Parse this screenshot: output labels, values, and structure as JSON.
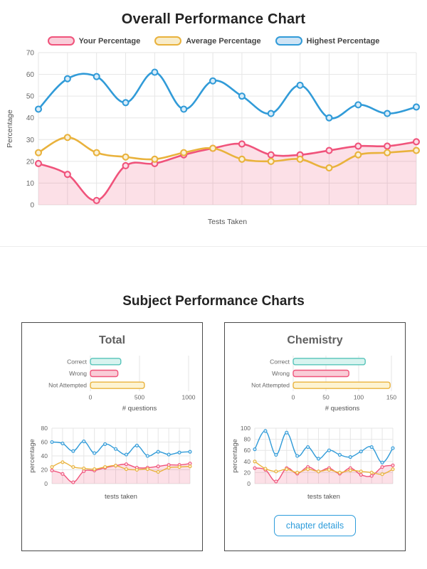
{
  "page": {
    "title": "Overall Performance Chart",
    "section_title": "Subject Performance Charts"
  },
  "cards": [
    {
      "title": "Total"
    },
    {
      "title": "Chemistry",
      "button_label": "chapter details"
    }
  ],
  "chart_data": [
    {
      "id": "overall",
      "type": "line",
      "title": "Overall Performance Chart",
      "xlabel": "Tests Taken",
      "ylabel": "Percentage",
      "ylim": [
        0,
        70
      ],
      "yticks": [
        0,
        10,
        20,
        30,
        40,
        50,
        60,
        70
      ],
      "grid": true,
      "legend_position": "top",
      "series": [
        {
          "name": "Your Percentage",
          "color": "#f0537b",
          "area_fill": "rgba(240,83,123,0.18)",
          "point_fill": "#fbdde6",
          "swatch_fill": "#f9cdd9",
          "values": [
            19,
            14,
            2,
            18,
            19,
            23,
            26,
            28,
            23,
            23,
            25,
            27,
            27,
            29
          ]
        },
        {
          "name": "Average Percentage",
          "color": "#e9b23c",
          "point_fill": "#faf0d6",
          "swatch_fill": "#f8ecca",
          "values": [
            24,
            31,
            24,
            22,
            21,
            24,
            26,
            21,
            20,
            21,
            17,
            23,
            24,
            25
          ]
        },
        {
          "name": "Highest Percentage",
          "color": "#319bd8",
          "point_fill": "#d8ecf9",
          "swatch_fill": "#cfe4f5",
          "values": [
            44,
            58,
            59,
            47,
            61,
            44,
            57,
            50,
            42,
            55,
            40,
            46,
            42,
            45
          ]
        }
      ]
    },
    {
      "id": "total_bars",
      "type": "bar",
      "orientation": "horizontal",
      "categories": [
        "Correct",
        "Wrong",
        "Not Attempted"
      ],
      "values": [
        310,
        280,
        550
      ],
      "xlabel": "# questions",
      "xlim": [
        0,
        1000
      ],
      "xticks": [
        0,
        500,
        1000
      ],
      "bar_colors": [
        {
          "fill": "#d8f3ef",
          "border": "#56c4ba"
        },
        {
          "fill": "#f9ccd7",
          "border": "#f0537b"
        },
        {
          "fill": "#fdf3d2",
          "border": "#e9b23c"
        }
      ]
    },
    {
      "id": "total_lines",
      "type": "line",
      "xlabel": "tests taken",
      "ylabel": "percentage",
      "ylim": [
        0,
        80
      ],
      "yticks": [
        0,
        20,
        40,
        60,
        80
      ],
      "grid": true,
      "series": [
        {
          "name": "Your Percentage",
          "color": "#f0537b",
          "area_fill": "rgba(240,83,123,0.18)",
          "point_fill": "#fbdde6",
          "values": [
            19,
            14,
            2,
            18,
            19,
            23,
            26,
            28,
            23,
            23,
            25,
            27,
            27,
            29
          ]
        },
        {
          "name": "Average Percentage",
          "color": "#e9b23c",
          "point_fill": "#faf0d6",
          "values": [
            24,
            31,
            24,
            22,
            21,
            24,
            26,
            21,
            20,
            21,
            17,
            23,
            24,
            25
          ]
        },
        {
          "name": "Highest Percentage",
          "color": "#319bd8",
          "point_fill": "#d8ecf9",
          "values": [
            60,
            58,
            47,
            61,
            44,
            57,
            50,
            42,
            55,
            40,
            46,
            42,
            45,
            46
          ]
        }
      ]
    },
    {
      "id": "chem_bars",
      "type": "bar",
      "orientation": "horizontal",
      "categories": [
        "Correct",
        "Wrong",
        "Not Attempted"
      ],
      "values": [
        110,
        85,
        148
      ],
      "xlabel": "# questions",
      "xlim": [
        0,
        150
      ],
      "xticks": [
        0,
        50,
        100,
        150
      ],
      "bar_colors": [
        {
          "fill": "#d8f3ef",
          "border": "#56c4ba"
        },
        {
          "fill": "#f9ccd7",
          "border": "#f0537b"
        },
        {
          "fill": "#fdf3d2",
          "border": "#e9b23c"
        }
      ]
    },
    {
      "id": "chem_lines",
      "type": "line",
      "xlabel": "tests taken",
      "ylabel": "percentage",
      "ylim": [
        0,
        100
      ],
      "yticks": [
        0,
        20,
        40,
        60,
        80,
        100
      ],
      "grid": true,
      "series": [
        {
          "name": "Your Percentage",
          "color": "#f0537b",
          "area_fill": "rgba(240,83,123,0.18)",
          "point_fill": "#fbdde6",
          "values": [
            28,
            25,
            4,
            28,
            18,
            30,
            22,
            28,
            18,
            28,
            16,
            14,
            30,
            33
          ]
        },
        {
          "name": "Average Percentage",
          "color": "#e9b23c",
          "point_fill": "#faf0d6",
          "values": [
            40,
            27,
            22,
            26,
            20,
            26,
            22,
            25,
            20,
            24,
            22,
            20,
            17,
            26
          ]
        },
        {
          "name": "Highest Percentage",
          "color": "#319bd8",
          "point_fill": "#d8ecf9",
          "values": [
            62,
            95,
            52,
            92,
            50,
            66,
            45,
            60,
            52,
            48,
            58,
            66,
            38,
            64
          ]
        }
      ]
    }
  ]
}
